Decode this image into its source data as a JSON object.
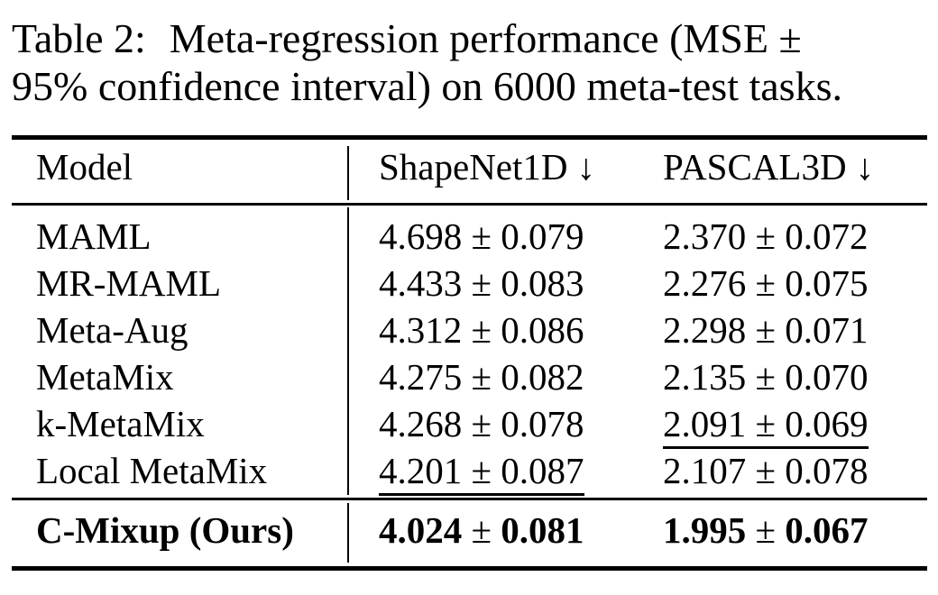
{
  "caption": {
    "tag": "Table 2:",
    "line1_rest": "Meta-regression performance (MSE ±",
    "line2": "95% confidence interval) on 6000 meta-test tasks."
  },
  "table": {
    "header": {
      "model": "Model",
      "col1": {
        "label": "ShapeNet1D",
        "arrow": "↓"
      },
      "col2": {
        "label": "PASCAL3D",
        "arrow": "↓"
      }
    },
    "rows": [
      {
        "model": "MAML",
        "shapenet1d": "4.698 ± 0.079",
        "pascal3d": "2.370 ± 0.072"
      },
      {
        "model": "MR-MAML",
        "shapenet1d": "4.433 ± 0.083",
        "pascal3d": "2.276 ± 0.075"
      },
      {
        "model": "Meta-Aug",
        "shapenet1d": "4.312 ± 0.086",
        "pascal3d": "2.298 ± 0.071"
      },
      {
        "model": "MetaMix",
        "shapenet1d": "4.275 ± 0.082",
        "pascal3d": "2.135 ± 0.070"
      },
      {
        "model": "k-MetaMix",
        "shapenet1d": "4.268 ± 0.078",
        "pascal3d": "2.091 ± 0.069"
      },
      {
        "model": "Local MetaMix",
        "shapenet1d": "4.201 ± 0.087",
        "pascal3d": "2.107 ± 0.078"
      }
    ],
    "underlined": [
      "rows.4.pascal3d",
      "rows.5.shapenet1d"
    ],
    "best_row": {
      "model": "C-Mixup (Ours)",
      "shapenet1d": {
        "mean": "4.024",
        "pm": "±",
        "ci": "0.081"
      },
      "pascal3d": {
        "mean": "1.995",
        "pm": "±",
        "ci": "0.067"
      }
    },
    "colors": {
      "text": "#000000",
      "background": "#ffffff"
    }
  }
}
